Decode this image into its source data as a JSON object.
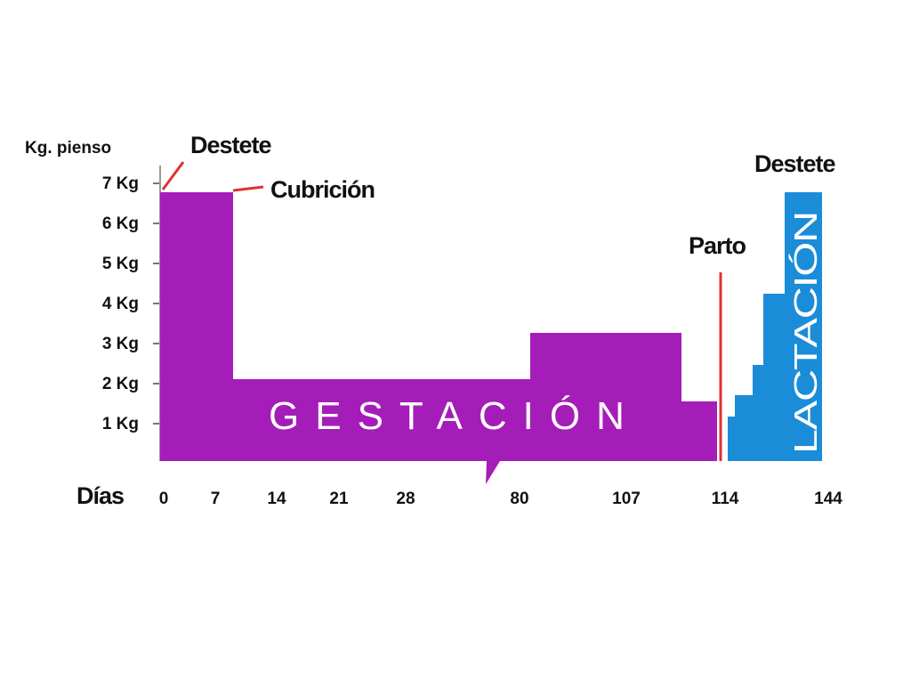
{
  "chart_data": {
    "type": "area",
    "ylabel": "Kg. pienso",
    "xlabel": "Días",
    "ylim": [
      0,
      7
    ],
    "yticks": [
      "1 Kg",
      "2 Kg",
      "3 Kg",
      "4 Kg",
      "5 Kg",
      "6 Kg",
      "7 Kg"
    ],
    "xticks": [
      "0",
      "7",
      "14",
      "21",
      "28",
      "80",
      "107",
      "114",
      "144"
    ],
    "axis_break": "between 28 and 80",
    "series": [
      {
        "name": "GESTACIÓN",
        "color": "#A51DB8",
        "steps": [
          {
            "from": "0",
            "to": "7",
            "kg": 6.7
          },
          {
            "from": "7",
            "to": "80",
            "kg": 2.1
          },
          {
            "from": "80",
            "to": "107",
            "kg": 3.2
          },
          {
            "from": "107",
            "to": "114",
            "kg": 1.5
          }
        ]
      },
      {
        "name": "LACTACIÓN",
        "color": "#1A8CD8",
        "steps": [
          {
            "from": "114",
            "to": "144",
            "kg": [
              1.1,
              1.7,
              2.4,
              4.2,
              6.7
            ]
          }
        ]
      }
    ],
    "annotations": [
      {
        "text": "Destete",
        "at": "0",
        "marker_color": "#E03030"
      },
      {
        "text": "Cubrición",
        "at": "7",
        "marker_color": "#E03030"
      },
      {
        "text": "Parto",
        "at": "114",
        "marker_color": "#E03030"
      },
      {
        "text": "Destete",
        "at": "144"
      }
    ]
  }
}
